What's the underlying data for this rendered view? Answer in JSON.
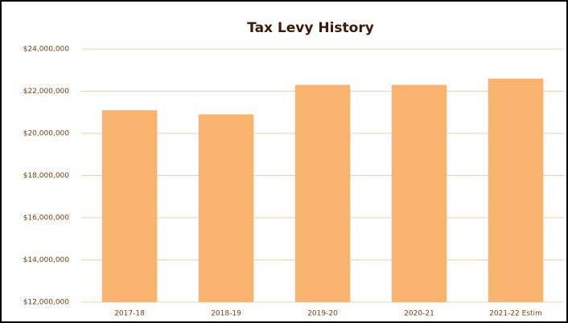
{
  "chart_data": {
    "type": "bar",
    "title": "Tax Levy History",
    "categories": [
      "2017-18",
      "2018-19",
      "2019-20",
      "2020-21",
      "2021-22 Estim"
    ],
    "values": [
      21100000,
      20900000,
      22300000,
      22300000,
      22600000
    ],
    "color": "#f9b36e",
    "ylim": [
      12000000,
      24000000
    ],
    "yticks": [
      {
        "value": 12000000,
        "label": "$12,000,000"
      },
      {
        "value": 14000000,
        "label": "$14,000,000"
      },
      {
        "value": 16000000,
        "label": "$16,000,000"
      },
      {
        "value": 18000000,
        "label": "$18,000,000"
      },
      {
        "value": 20000000,
        "label": "$20,000,000"
      },
      {
        "value": 22000000,
        "label": "$22,000,000"
      },
      {
        "value": 24000000,
        "label": "$24,000,000"
      }
    ],
    "grid": true
  }
}
